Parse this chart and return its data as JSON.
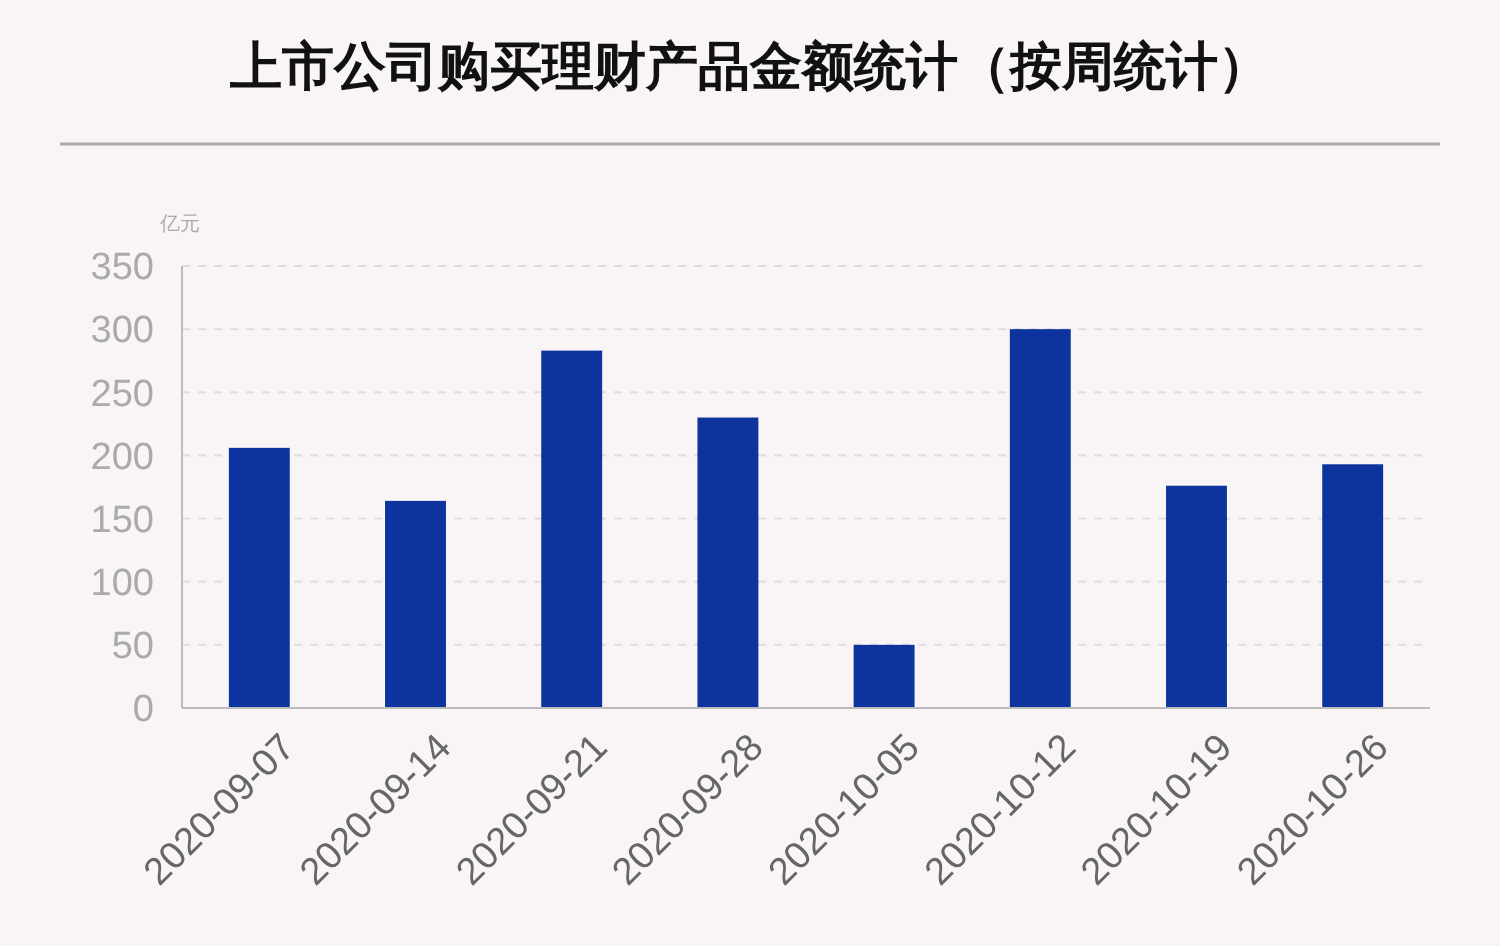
{
  "chart_data": {
    "type": "bar",
    "title": "上市公司购买理财产品金额统计（按周统计）",
    "ylabel": "亿元",
    "categories": [
      "2020-09-07",
      "2020-09-14",
      "2020-09-21",
      "2020-09-28",
      "2020-10-05",
      "2020-10-12",
      "2020-10-19",
      "2020-10-26"
    ],
    "values": [
      206,
      164,
      283,
      230,
      50,
      300,
      176,
      193
    ],
    "color": "#0d339e",
    "ylim": [
      0,
      350
    ],
    "yticks": [
      0,
      50,
      100,
      150,
      200,
      250,
      300,
      350
    ],
    "grid": "y"
  }
}
